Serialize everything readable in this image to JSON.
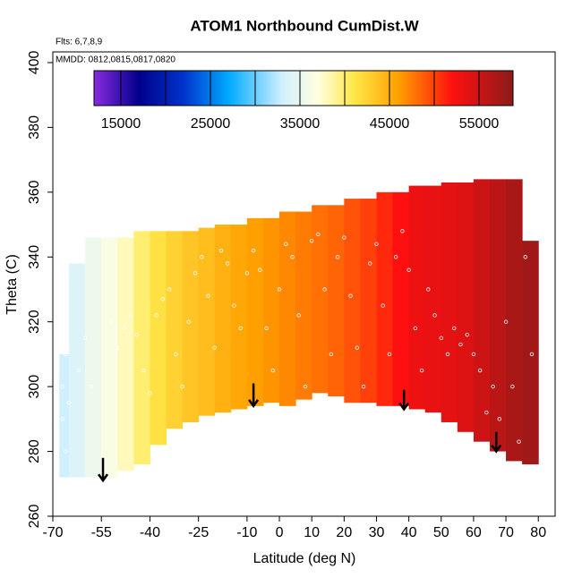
{
  "chart_data": {
    "type": "heatmap",
    "title": "ATOM1 Northbound CumDist.W",
    "annotations": [
      "Flts: 6,7,8,9",
      "MMDD: 0812,0815,0817,0820"
    ],
    "x_label": "Latitude (deg N)",
    "y_label": "Theta (C)",
    "xlim": [
      -70,
      85.2
    ],
    "ylim": [
      260,
      403.3
    ],
    "xticks": [
      -70,
      -55,
      -40,
      -25,
      -10,
      0,
      10,
      20,
      30,
      40,
      50,
      60,
      70,
      80
    ],
    "yticks": [
      260,
      280,
      300,
      320,
      340,
      360,
      380,
      400
    ],
    "lat_edges": [
      -68,
      -65,
      -60,
      -55,
      -50,
      -45,
      -40,
      -35,
      -30,
      -25,
      -20,
      -15,
      -10,
      -5,
      0,
      5,
      10,
      15,
      20,
      25,
      30,
      35,
      40,
      45,
      50,
      55,
      60,
      65,
      70,
      75,
      80
    ],
    "theta_top": [
      310,
      338,
      346,
      346,
      346,
      348,
      348,
      348,
      348,
      349,
      350,
      350,
      352,
      352,
      354,
      354,
      356,
      356,
      358,
      358,
      360,
      360,
      362,
      362,
      363,
      363,
      364,
      364,
      364,
      345
    ],
    "theta_bottom": [
      272,
      272,
      272,
      272,
      274,
      276,
      282,
      287,
      289,
      291,
      292,
      293,
      294,
      295,
      294,
      296,
      298,
      297,
      295,
      295,
      294,
      294,
      293,
      292,
      289,
      286,
      283,
      280,
      277,
      276
    ],
    "values": [
      33000,
      34000,
      35500,
      36500,
      38000,
      40000,
      41500,
      42500,
      43500,
      44000,
      44800,
      45500,
      46000,
      46500,
      47000,
      47500,
      48000,
      48500,
      49200,
      50000,
      51000,
      52000,
      53000,
      53300,
      53600,
      54000,
      55000,
      56000,
      57000,
      57500
    ],
    "colorbar_lim": [
      12000,
      58800
    ],
    "colorbar_ticks": [
      15000,
      25000,
      35000,
      45000,
      55000
    ],
    "colorbar_breaks": [
      15000,
      20000,
      25000,
      30000,
      35000,
      40000,
      45000,
      50000,
      55000
    ],
    "colorscale": [
      {
        "value": 12000,
        "color": "#8a2be2"
      },
      {
        "value": 17000,
        "color": "#00008b"
      },
      {
        "value": 22000,
        "color": "#0033cc"
      },
      {
        "value": 27000,
        "color": "#00aaff"
      },
      {
        "value": 33000,
        "color": "#d0f0ff"
      },
      {
        "value": 37000,
        "color": "#ffffe0"
      },
      {
        "value": 41000,
        "color": "#ffe84a"
      },
      {
        "value": 46000,
        "color": "#ffa000"
      },
      {
        "value": 52000,
        "color": "#ff1010"
      },
      {
        "value": 58800,
        "color": "#8b1a1a"
      }
    ],
    "points": {
      "color": "#ffffff",
      "x": [
        -67,
        -67,
        -66,
        -66,
        -65,
        -62,
        -60,
        -58,
        -52,
        -50,
        -48,
        -46,
        -44,
        -42,
        -40,
        -38,
        -36,
        -34,
        -32,
        -30,
        -28,
        -26,
        -24,
        -22,
        -20,
        -18,
        -16,
        -14,
        -12,
        -10,
        -8,
        -6,
        -4,
        -2,
        0,
        2,
        4,
        6,
        8,
        10,
        12,
        14,
        16,
        18,
        20,
        22,
        24,
        26,
        28,
        30,
        32,
        34,
        36,
        38,
        40,
        42,
        44,
        46,
        48,
        50,
        52,
        54,
        56,
        58,
        60,
        62,
        64,
        66,
        68,
        70,
        72,
        74,
        76,
        78
      ],
      "y": [
        300,
        290,
        280,
        310,
        295,
        305,
        315,
        300,
        320,
        312,
        318,
        322,
        316,
        305,
        298,
        322,
        327,
        330,
        310,
        300,
        320,
        335,
        340,
        328,
        312,
        342,
        338,
        325,
        318,
        335,
        342,
        336,
        318,
        305,
        330,
        344,
        340,
        322,
        300,
        345,
        347,
        330,
        310,
        340,
        346,
        328,
        312,
        300,
        338,
        344,
        325,
        310,
        340,
        348,
        336,
        318,
        305,
        330,
        322,
        315,
        310,
        318,
        313,
        316,
        310,
        305,
        292,
        300,
        290,
        320,
        300,
        283,
        340,
        310
      ]
    },
    "arrows": {
      "color": "#000000",
      "x": [
        -54.5,
        -8,
        38.5,
        67
      ],
      "y_start": [
        278,
        301,
        299,
        286
      ],
      "y_end": [
        271,
        294,
        293,
        280
      ]
    }
  }
}
